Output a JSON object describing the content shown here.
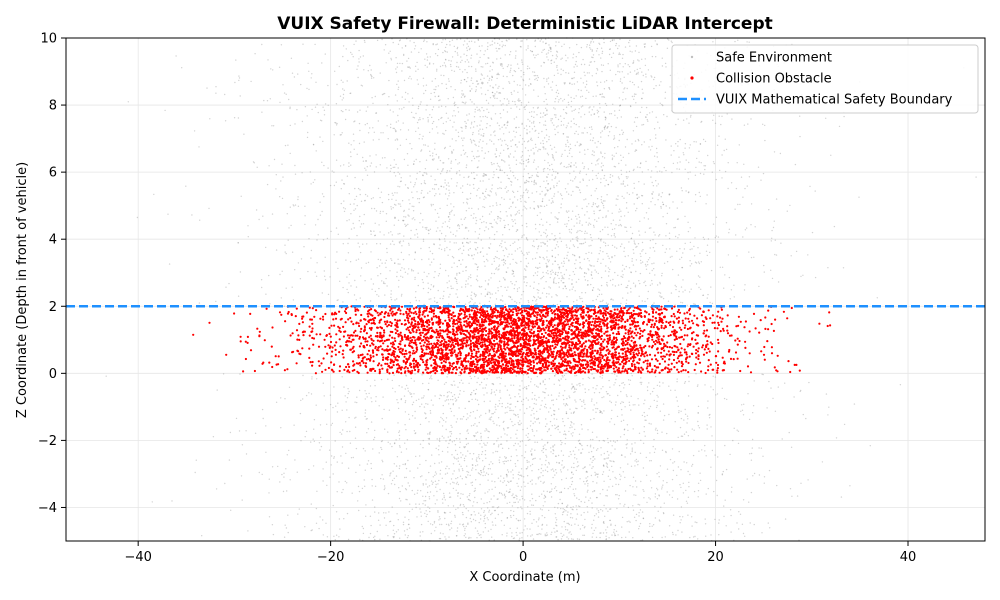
{
  "chart_data": {
    "type": "scatter",
    "title": "VUIX Safety Firewall: Deterministic LiDAR Intercept",
    "xlabel": "X Coordinate (m)",
    "ylabel": "Z Coordinate (Depth in front of vehicle)",
    "xlim": [
      -47.5,
      48
    ],
    "ylim": [
      -5,
      10
    ],
    "xticks": [
      -40,
      -20,
      0,
      20,
      40
    ],
    "xtick_labels": [
      "−40",
      "−20",
      "0",
      "20",
      "40"
    ],
    "yticks": [
      -4,
      -2,
      0,
      2,
      4,
      6,
      8,
      10
    ],
    "ytick_labels": [
      "−4",
      "−2",
      "0",
      "2",
      "4",
      "6",
      "8",
      "10"
    ],
    "grid": true,
    "legend_position": "top-right",
    "series": [
      {
        "name": "Safe Environment",
        "kind": "points",
        "color": "#808080",
        "point_count": 7000,
        "x_distribution": "normal",
        "x_mean": 0,
        "x_std": 12,
        "z_range": [
          -5,
          10
        ],
        "excluded_z_band": [
          0,
          2
        ]
      },
      {
        "name": "Collision Obstacle",
        "kind": "points",
        "color": "#ff0000",
        "point_count": 4500,
        "x_distribution": "normal",
        "x_mean": 0,
        "x_std": 10,
        "x_range": [
          -38,
          34
        ],
        "z_range": [
          0,
          2
        ]
      },
      {
        "name": "VUIX Mathematical Safety Boundary",
        "kind": "hline",
        "y": 2,
        "color": "#1e90ff",
        "style": "dashed"
      }
    ]
  }
}
